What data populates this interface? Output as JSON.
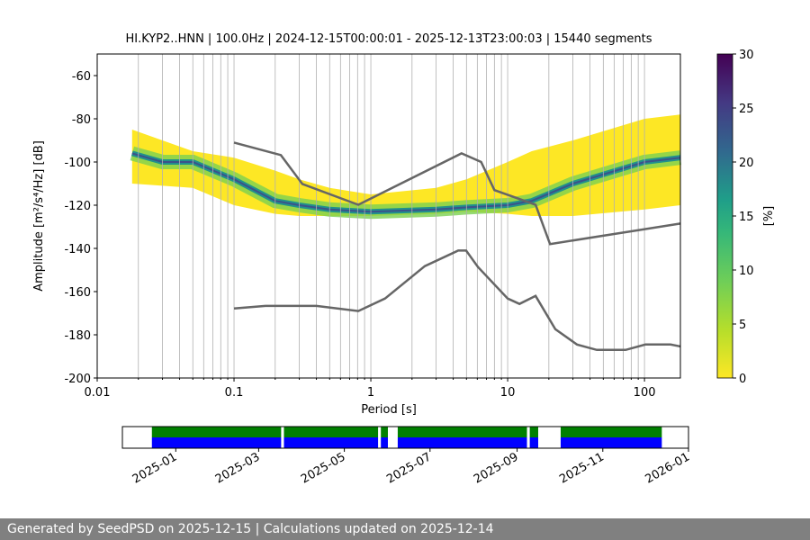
{
  "chart_data": {
    "type": "psd",
    "title": "HI.KYP2..HNN | 100.0Hz | 2024-12-15T00:00:01 - 2025-12-13T23:00:03 | 15440 segments",
    "x_label": "Period [s]",
    "y_label": "Amplitude [m²/s⁴/Hz] [dB]",
    "log_x": true,
    "grid": true,
    "xlim": [
      0.01,
      183
    ],
    "ylim": [
      -200,
      -50
    ],
    "xticks": [
      0.01,
      0.1,
      1,
      10,
      100
    ],
    "xminor": [
      0.02,
      0.03,
      0.04,
      0.05,
      0.06,
      0.07,
      0.08,
      0.09,
      0.2,
      0.3,
      0.4,
      0.5,
      0.6,
      0.7,
      0.8,
      0.9,
      2,
      3,
      4,
      5,
      6,
      7,
      8,
      9,
      20,
      30,
      40,
      50,
      60,
      70,
      80,
      90
    ],
    "yticks": [
      -200,
      -180,
      -160,
      -140,
      -120,
      -100,
      -80,
      -60
    ],
    "pdf": {
      "x": [
        0.018,
        0.03,
        0.05,
        0.1,
        0.2,
        0.3,
        0.5,
        1,
        3,
        5,
        10,
        15,
        30,
        100,
        183
      ],
      "low": [
        -110,
        -111,
        -112,
        -120,
        -124,
        -125,
        -125,
        -125,
        -124,
        -123,
        -124,
        -125,
        -125,
        -122,
        -120
      ],
      "high": [
        -85,
        -90,
        -95,
        -98,
        -104,
        -108,
        -112,
        -115,
        -112,
        -108,
        -100,
        -95,
        -90,
        -80,
        -78
      ],
      "mode": [
        -96,
        -100,
        -100,
        -108,
        -118,
        -120,
        -122,
        -123,
        -122,
        -121,
        -120,
        -118,
        -110,
        -100,
        -98
      ]
    },
    "series": [
      {
        "color": "#666666",
        "x": [
          0.1,
          0.22,
          0.316,
          0.81,
          4.6,
          6.4,
          8.0,
          16,
          20.4,
          183
        ],
        "values": [
          -91,
          -96.8,
          -110.2,
          -119.8,
          -96,
          -100,
          -113,
          -119.8,
          -138,
          -128.5
        ]
      },
      {
        "color": "#666666",
        "x": [
          0.1,
          0.17,
          0.4,
          0.81,
          1.27,
          2.48,
          4.35,
          4.97,
          6.06,
          10,
          12.2,
          16,
          22.3,
          32.1,
          44.8,
          72.8,
          101.6,
          155,
          183
        ],
        "values": [
          -167.8,
          -166.6,
          -166.6,
          -169,
          -163.2,
          -148.2,
          -141,
          -141,
          -148.6,
          -163.2,
          -165.7,
          -162,
          -177.4,
          -184.5,
          -187,
          -187,
          -184.5,
          -184.5,
          -185.4
        ]
      }
    ],
    "colorbar": {
      "label": "[%]",
      "lim": [
        0,
        30
      ],
      "ticks": [
        0,
        5,
        10,
        15,
        20,
        25,
        30
      ]
    },
    "timeline": {
      "xlim": [
        "2024-11-24",
        "2026-01-01"
      ],
      "xticks": [
        {
          "value": "2025-01-01",
          "label": "2025-01"
        },
        {
          "value": "2025-03-01",
          "label": "2025-03"
        },
        {
          "value": "2025-05-01",
          "label": "2025-05"
        },
        {
          "value": "2025-07-01",
          "label": "2025-07"
        },
        {
          "value": "2025-09-01",
          "label": "2025-09"
        },
        {
          "value": "2025-11-01",
          "label": "2025-11"
        },
        {
          "value": "2026-01-01",
          "label": "2026-01"
        }
      ],
      "colors": [
        "#008000",
        "#0000ff"
      ],
      "segments": [
        [
          "2024-12-15",
          "2025-03-17"
        ],
        [
          "2025-03-19",
          "2025-05-25"
        ],
        [
          "2025-05-27",
          "2025-06-01"
        ],
        [
          "2025-06-08",
          "2025-09-08"
        ],
        [
          "2025-09-10",
          "2025-09-16"
        ],
        [
          "2025-10-02",
          "2025-12-13"
        ]
      ]
    }
  },
  "footer": "Generated by SeedPSD on 2025-12-15 | Calculations updated on 2025-12-14"
}
